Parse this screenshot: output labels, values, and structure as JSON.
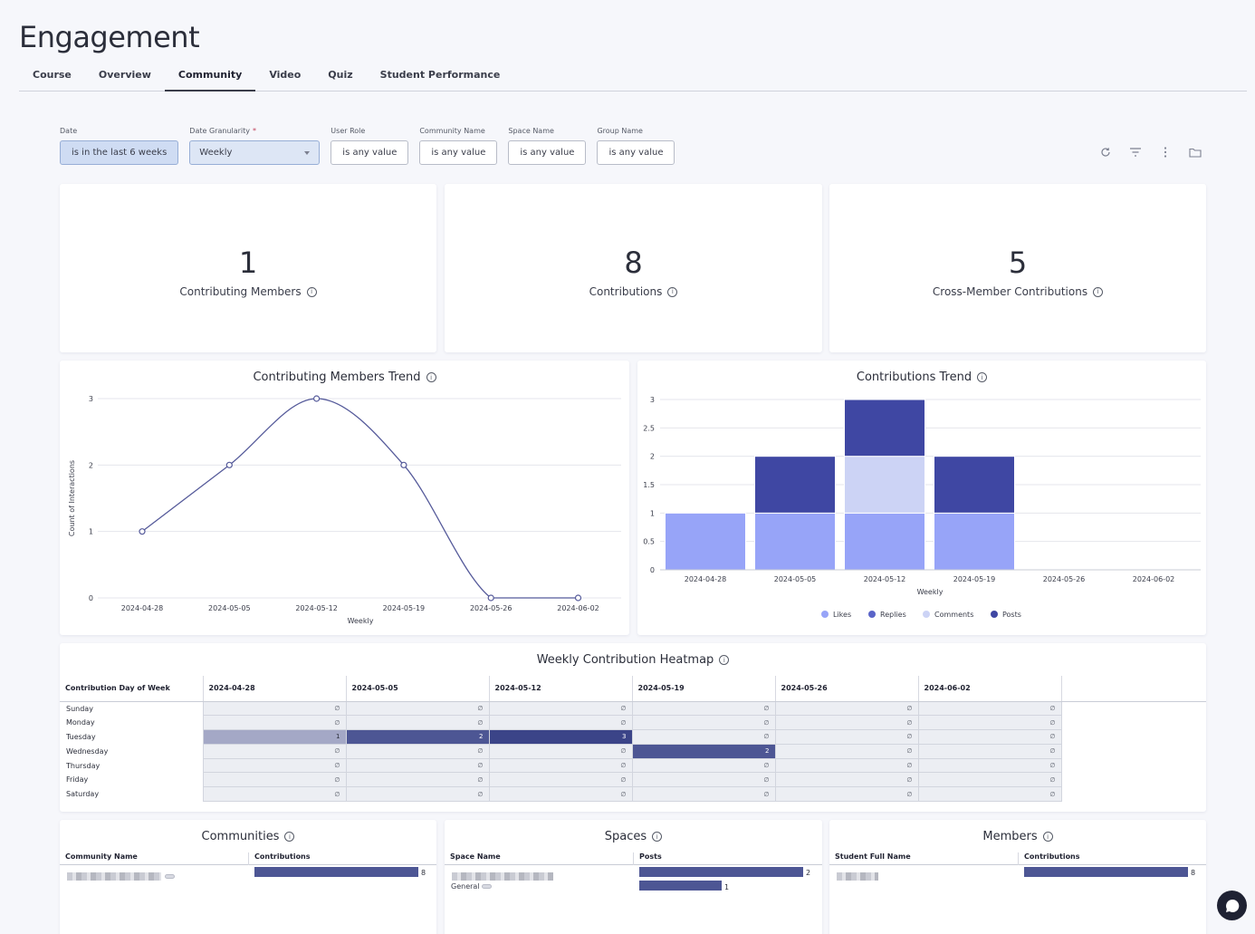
{
  "page": {
    "title": "Engagement"
  },
  "tabs": [
    {
      "label": "Course"
    },
    {
      "label": "Overview"
    },
    {
      "label": "Community"
    },
    {
      "label": "Video"
    },
    {
      "label": "Quiz"
    },
    {
      "label": "Student Performance"
    }
  ],
  "active_tab": "Community",
  "filters": {
    "date": {
      "label": "Date",
      "value": "is in the last 6 weeks"
    },
    "granularity": {
      "label": "Date Granularity",
      "required_mark": "*",
      "value": "Weekly"
    },
    "user_role": {
      "label": "User Role",
      "value": "is any value"
    },
    "community_name": {
      "label": "Community Name",
      "value": "is any value"
    },
    "space_name": {
      "label": "Space Name",
      "value": "is any value"
    },
    "group_name": {
      "label": "Group Name",
      "value": "is any value"
    }
  },
  "toolbar": {
    "icons": [
      "refresh-icon",
      "filter-icon",
      "more-vertical-icon",
      "folder-icon"
    ]
  },
  "kpis": [
    {
      "value": "1",
      "label": "Contributing Members"
    },
    {
      "value": "8",
      "label": "Contributions"
    },
    {
      "value": "5",
      "label": "Cross-Member Contributions"
    }
  ],
  "info_glyph": "i",
  "chart_data": [
    {
      "type": "line",
      "title": "Contributing Members Trend",
      "xlabel": "Weekly",
      "ylabel": "Count of Interactions",
      "x": [
        "2024-04-28",
        "2024-05-05",
        "2024-05-12",
        "2024-05-19",
        "2024-05-26",
        "2024-06-02"
      ],
      "y": [
        1,
        2,
        3,
        2,
        0,
        0
      ],
      "ylim": [
        0,
        3
      ],
      "yticks": [
        0,
        1,
        2,
        3
      ],
      "grid": true,
      "color": "#555a9a"
    },
    {
      "type": "bar",
      "stacked": true,
      "title": "Contributions Trend",
      "xlabel": "Weekly",
      "categories": [
        "2024-04-28",
        "2024-05-05",
        "2024-05-12",
        "2024-05-19",
        "2024-05-26",
        "2024-06-02"
      ],
      "series": [
        {
          "name": "Likes",
          "color": "#97a4f8",
          "values": [
            1,
            1,
            1,
            1,
            0,
            0
          ]
        },
        {
          "name": "Replies",
          "color": "#5a64c8",
          "values": [
            0,
            0,
            0,
            0,
            0,
            0
          ]
        },
        {
          "name": "Comments",
          "color": "#ccd3f5",
          "values": [
            0,
            0,
            1,
            0,
            0,
            0
          ]
        },
        {
          "name": "Posts",
          "color": "#3f47a3",
          "values": [
            0,
            1,
            1,
            1,
            0,
            0
          ]
        }
      ],
      "ylim": [
        0,
        3
      ],
      "yticks": [
        "0",
        "0.5",
        "1",
        "1.5",
        "2",
        "2.5",
        "3"
      ],
      "legend": "bottom",
      "grid": true
    }
  ],
  "heatmap": {
    "title": "Weekly Contribution Heatmap",
    "row_header": "Contribution Day of Week",
    "columns": [
      "2024-04-28",
      "2024-05-05",
      "2024-05-12",
      "2024-05-19",
      "2024-05-26",
      "2024-06-02"
    ],
    "null_glyph": "∅",
    "rows": [
      {
        "day": "Sunday",
        "values": [
          null,
          null,
          null,
          null,
          null,
          null
        ]
      },
      {
        "day": "Monday",
        "values": [
          null,
          null,
          null,
          null,
          null,
          null
        ]
      },
      {
        "day": "Tuesday",
        "values": [
          1,
          2,
          3,
          null,
          null,
          null
        ]
      },
      {
        "day": "Wednesday",
        "values": [
          null,
          null,
          null,
          2,
          null,
          null
        ]
      },
      {
        "day": "Thursday",
        "values": [
          null,
          null,
          null,
          null,
          null,
          null
        ]
      },
      {
        "day": "Friday",
        "values": [
          null,
          null,
          null,
          null,
          null,
          null
        ]
      },
      {
        "day": "Saturday",
        "values": [
          null,
          null,
          null,
          null,
          null,
          null
        ]
      }
    ]
  },
  "communities": {
    "title": "Communities",
    "col1": "Community Name",
    "col2": "Contributions",
    "rows": [
      {
        "value": 8
      }
    ],
    "max": 8
  },
  "spaces": {
    "title": "Spaces",
    "col1": "Space Name",
    "col2": "Posts",
    "rows": [
      {
        "name": "",
        "value": 2
      },
      {
        "name": "General",
        "value": 1
      }
    ],
    "max": 2
  },
  "members": {
    "title": "Members",
    "col1": "Student Full Name",
    "col2": "Contributions",
    "rows": [
      {
        "value": 8
      }
    ],
    "max": 8
  }
}
